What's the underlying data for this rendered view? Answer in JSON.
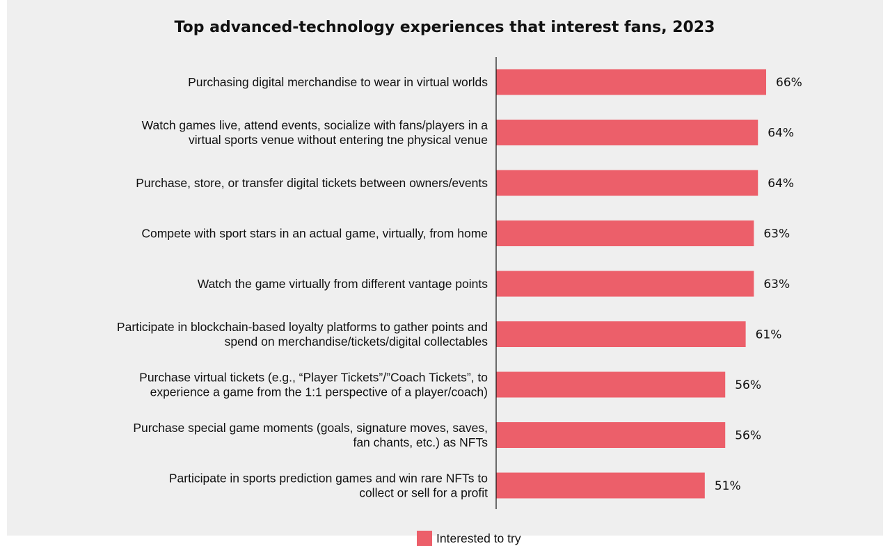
{
  "chart_data": {
    "type": "bar",
    "orientation": "horizontal",
    "title": "Top advanced-technology experiences that interest fans, 2023",
    "categories": [
      [
        "Purchasing digital merchandise to wear in virtual worlds"
      ],
      [
        "Watch games live, attend events, socialize with fans/players in a",
        "virtual sports venue without entering tne physical venue"
      ],
      [
        "Purchase, store, or transfer digital tickets between owners/events"
      ],
      [
        "Compete with sport stars in an actual game, virtually, from home"
      ],
      [
        "Watch the game virtually from different vantage points"
      ],
      [
        "Participate in blockchain-based loyalty platforms to gather points and",
        "spend on merchandise/tickets/digital collectables"
      ],
      [
        "Purchase virtual tickets (e.g., “Player Tickets”/”Coach Tickets”, to",
        "experience a game from the 1:1 perspective of a player/coach)"
      ],
      [
        "Purchase special game moments (goals, signature moves, saves,",
        "fan chants, etc.) as NFTs"
      ],
      [
        "Participate in sports prediction games and win rare NFTs to",
        "collect or sell for a profit"
      ]
    ],
    "series": [
      {
        "name": "Interested to try",
        "values": [
          66,
          64,
          64,
          63,
          63,
          61,
          56,
          56,
          51
        ],
        "labels": [
          "66%",
          "64%",
          "64%",
          "63%",
          "63%",
          "61%",
          "56%",
          "56%",
          "51%"
        ],
        "color": "#ec5f6a"
      }
    ],
    "xlim": [
      0,
      66
    ],
    "grid": false,
    "legend": "bottom-center"
  }
}
